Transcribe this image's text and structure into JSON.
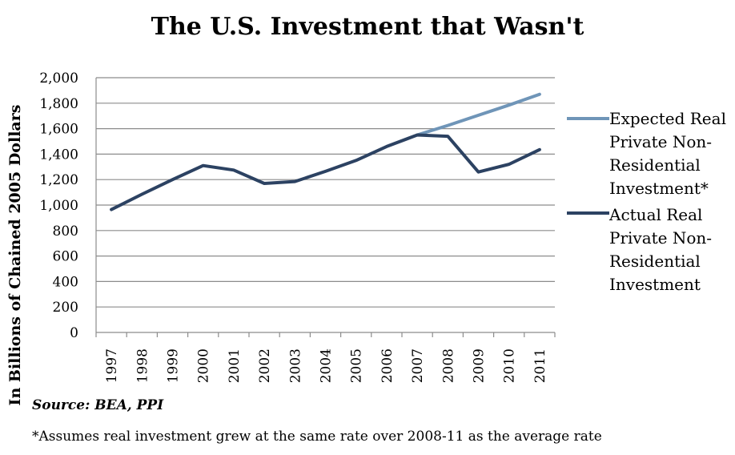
{
  "chart_data": {
    "type": "line",
    "title": "The U.S. Investment that Wasn't",
    "ylabel": "In Billions of Chained 2005 Dollars",
    "xlabel": "",
    "ylim": [
      0,
      2000
    ],
    "yticks": [
      0,
      200,
      400,
      600,
      800,
      1000,
      1200,
      1400,
      1600,
      1800,
      2000
    ],
    "ytick_labels": [
      "0",
      "200",
      "400",
      "600",
      "800",
      "1,000",
      "1,200",
      "1,400",
      "1,600",
      "1,800",
      "2,000"
    ],
    "categories": [
      "1997",
      "1998",
      "1999",
      "2000",
      "2001",
      "2002",
      "2003",
      "2004",
      "2005",
      "2006",
      "2007",
      "2008",
      "2009",
      "2010",
      "2011"
    ],
    "grid": true,
    "legend_position": "right",
    "series": [
      {
        "name": "Expected Real Private Non-Residential Investment*",
        "color": "#6f95b8",
        "values": [
          null,
          null,
          null,
          null,
          null,
          null,
          null,
          null,
          null,
          null,
          1550,
          1625,
          1705,
          1785,
          1870
        ]
      },
      {
        "name": "Actual Real Private Non-Residential Investment",
        "color": "#2c4262",
        "values": [
          965,
          1085,
          1200,
          1310,
          1275,
          1170,
          1185,
          1265,
          1350,
          1460,
          1550,
          1540,
          1260,
          1320,
          1435
        ]
      }
    ]
  },
  "source": "Source: BEA, PPI",
  "footnote": "*Assumes  real investment  grew at the same rate over 2008-11 as the average rate"
}
